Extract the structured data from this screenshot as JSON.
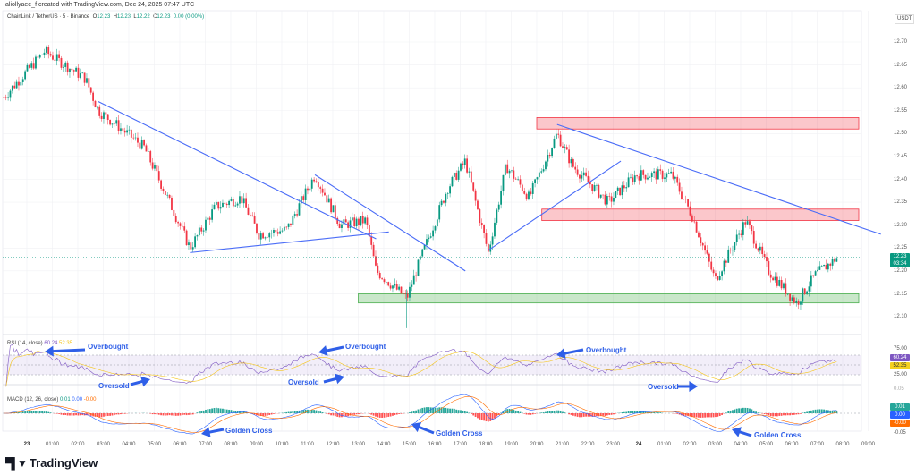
{
  "credit": "aliollyaee_f created with TradingView.com, Dec 24, 2025 07:47 UTC",
  "legend": {
    "symbol": "ChainLink / TetherUS · 5 · Binance",
    "o_label": "O",
    "o": "12.23",
    "h_label": "H",
    "h": "12.23",
    "l_label": "L",
    "l": "12.22",
    "c_label": "C",
    "c": "12.23",
    "change": "0.00 (0.00%)"
  },
  "rsi_legend": {
    "label": "RSI (14, close)",
    "v1": "60.24",
    "v2": "52.35"
  },
  "macd_legend": {
    "label": "MACD (12, 26, close)",
    "v1": "0.01",
    "v2": "0.00",
    "v3": "-0.00"
  },
  "currency": "USDT",
  "price_ticks": [
    "12.70",
    "12.65",
    "12.60",
    "12.55",
    "12.50",
    "12.45",
    "12.40",
    "12.35",
    "12.30",
    "12.25",
    "12.20",
    "12.15",
    "12.10"
  ],
  "last_price": {
    "value": "12.23",
    "countdown": "03:34"
  },
  "rsi_ticks": [
    "75.00",
    "25.00"
  ],
  "rsi_badges": [
    "60.24",
    "52.35"
  ],
  "macd_ticks": [
    "0.05",
    "-0.05"
  ],
  "macd_badges": [
    "0.01",
    "0.00",
    "-0.00"
  ],
  "time_ticks": [
    "23",
    "01:00",
    "02:00",
    "03:00",
    "04:00",
    "05:00",
    "06:00",
    "07:00",
    "08:00",
    "09:00",
    "10:00",
    "11:00",
    "12:00",
    "13:00",
    "14:00",
    "15:00",
    "16:00",
    "17:00",
    "18:00",
    "19:00",
    "20:00",
    "21:00",
    "22:00",
    "23:00",
    "24",
    "01:00",
    "02:00",
    "03:00",
    "04:00",
    "05:00",
    "06:00",
    "07:00",
    "08:00",
    "09:00"
  ],
  "annotations": {
    "overbought": "Overbought",
    "oversold": "Oversold",
    "golden_cross": "Golden Cross"
  },
  "brand": "TradingView",
  "colors": {
    "up": "#089981",
    "down": "#f23645",
    "rsi": "#7e57c2",
    "signal": "#ff9800",
    "macd": "#2962ff",
    "annotation": "#2f5fe8"
  },
  "chart_data": {
    "type": "candlestick",
    "title": "ChainLink / TetherUS · 5 · Binance",
    "ylim": [
      12.08,
      12.72
    ],
    "x_unit": "hours since Dec 23 00:00",
    "price_path": [
      [
        -0.9,
        12.58
      ],
      [
        0.7,
        12.68
      ],
      [
        2.3,
        12.62
      ],
      [
        2.8,
        12.55
      ],
      [
        3.5,
        12.52
      ],
      [
        4.6,
        12.47
      ],
      [
        5.6,
        12.35
      ],
      [
        6.4,
        12.25
      ],
      [
        7.4,
        12.34
      ],
      [
        8.4,
        12.36
      ],
      [
        9.1,
        12.28
      ],
      [
        10.2,
        12.29
      ],
      [
        11.3,
        12.41
      ],
      [
        12.3,
        12.3
      ],
      [
        13.3,
        12.31
      ],
      [
        13.7,
        12.2
      ],
      [
        14.9,
        12.14
      ],
      [
        15.4,
        12.22
      ],
      [
        16.5,
        12.38
      ],
      [
        17.2,
        12.44
      ],
      [
        18.1,
        12.24
      ],
      [
        18.8,
        12.43
      ],
      [
        19.7,
        12.36
      ],
      [
        20.8,
        12.5
      ],
      [
        21.4,
        12.43
      ],
      [
        22.8,
        12.35
      ],
      [
        23.9,
        12.41
      ],
      [
        25.3,
        12.41
      ],
      [
        26.1,
        12.32
      ],
      [
        27,
        12.18
      ],
      [
        28.2,
        12.31
      ],
      [
        29.1,
        12.2
      ],
      [
        30.2,
        12.13
      ],
      [
        30.9,
        12.19
      ],
      [
        31.8,
        12.23
      ]
    ],
    "zones": [
      {
        "type": "resistance",
        "from": 12.51,
        "to": 12.535,
        "start": 20.0
      },
      {
        "type": "resistance",
        "from": 12.31,
        "to": 12.335,
        "start": 20.2
      },
      {
        "type": "support",
        "from": 12.13,
        "to": 12.15,
        "start": 13.0
      }
    ],
    "trendlines": [
      [
        [
          2.8,
          12.57
        ],
        [
          13.7,
          12.27
        ]
      ],
      [
        [
          6.4,
          12.24
        ],
        [
          14.2,
          12.285
        ]
      ],
      [
        [
          11.3,
          12.41
        ],
        [
          17.2,
          12.2
        ]
      ],
      [
        [
          18.1,
          12.245
        ],
        [
          23.3,
          12.44
        ]
      ],
      [
        [
          20.8,
          12.52
        ],
        [
          33.5,
          12.28
        ]
      ]
    ]
  }
}
